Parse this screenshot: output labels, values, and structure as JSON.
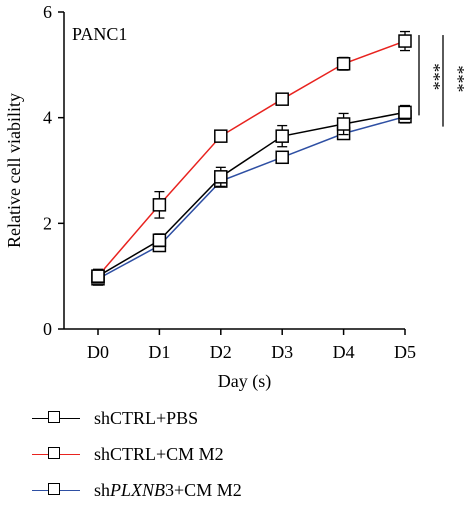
{
  "chart_data": {
    "type": "line",
    "title": "PANC1",
    "xlabel": "Day (s)",
    "ylabel": "Relative cell viability",
    "categories": [
      "D0",
      "D1",
      "D2",
      "D3",
      "D4",
      "D5"
    ],
    "ylim": [
      0,
      6
    ],
    "yticks": [
      0,
      2,
      4,
      6
    ],
    "grid": false,
    "legend_position": "bottom",
    "series": [
      {
        "name": "shCTRL+PBS",
        "color": "#000000",
        "values": [
          1.0,
          1.68,
          2.88,
          3.65,
          3.88,
          4.1
        ],
        "errors": [
          0.13,
          0.12,
          0.18,
          0.2,
          0.2,
          0.13
        ]
      },
      {
        "name": "shCTRL+CM M2",
        "color": "#e8231f",
        "values": [
          1.0,
          2.35,
          3.65,
          4.35,
          5.02,
          5.45
        ],
        "errors": [
          0.1,
          0.25,
          0.09,
          0.1,
          0.12,
          0.18
        ]
      },
      {
        "name": "shPLXNB3+CM M2",
        "color": "#2e4fa3",
        "values": [
          0.95,
          1.58,
          2.8,
          3.25,
          3.7,
          4.02
        ],
        "errors": [
          0.12,
          0.09,
          0.1,
          0.1,
          0.1,
          0.12
        ]
      }
    ],
    "annotations": [
      "***",
      "***"
    ]
  },
  "legend": {
    "items": [
      {
        "prefix": "shCTRL+PBS",
        "italic": "",
        "suffix": "",
        "color": "#000000"
      },
      {
        "prefix": "shCTRL+CM M2",
        "italic": "",
        "suffix": "",
        "color": "#e8231f"
      },
      {
        "prefix": "sh",
        "italic": "PLXNB",
        "suffix": "3+CM M2",
        "color": "#2e4fa3"
      }
    ]
  }
}
